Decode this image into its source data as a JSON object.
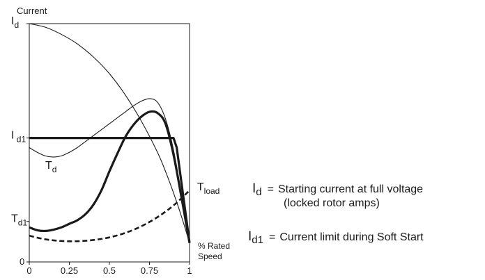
{
  "chart_data": {
    "type": "line",
    "title": "",
    "ylabel": "Current",
    "xlabel_lines": [
      "% Rated",
      "Speed"
    ],
    "x_ticks": [
      "0",
      "0.25",
      "0.5",
      "0.75",
      "1"
    ],
    "xlim": [
      0,
      1
    ],
    "ylim": [
      0,
      1
    ],
    "grid": false,
    "y_marks": [
      {
        "name": "I",
        "sub": "d",
        "y": 1.0
      },
      {
        "name": "I",
        "sub": " d1",
        "y": 0.52
      },
      {
        "name": "T",
        "sub": "d1",
        "y": 0.17
      },
      {
        "name": "0",
        "sub": "",
        "y": 0.0
      }
    ],
    "series": [
      {
        "style": "thin",
        "x": [
          0,
          0.1,
          0.2,
          0.3,
          0.4,
          0.5,
          0.6,
          0.7,
          0.8,
          0.85,
          0.9,
          0.95,
          1.0
        ],
        "y": [
          1.0,
          0.985,
          0.955,
          0.915,
          0.86,
          0.79,
          0.7,
          0.59,
          0.46,
          0.38,
          0.29,
          0.19,
          0.08
        ]
      },
      {
        "style": "thin",
        "x": [
          0,
          0.05,
          0.1,
          0.15,
          0.2,
          0.25,
          0.3,
          0.35,
          0.4,
          0.45,
          0.5,
          0.55,
          0.6,
          0.65,
          0.7,
          0.75,
          0.8,
          0.85,
          0.9,
          0.95,
          1.0
        ],
        "y": [
          0.48,
          0.46,
          0.445,
          0.44,
          0.445,
          0.46,
          0.48,
          0.505,
          0.53,
          0.555,
          0.58,
          0.605,
          0.63,
          0.655,
          0.675,
          0.685,
          0.67,
          0.6,
          0.47,
          0.28,
          0.08
        ]
      },
      {
        "style": "thick",
        "x": [
          0,
          0.3,
          0.6,
          0.9,
          0.92,
          1.0
        ],
        "y": [
          0.52,
          0.52,
          0.52,
          0.52,
          0.48,
          0.08
        ]
      },
      {
        "style": "thick",
        "x": [
          0,
          0.05,
          0.1,
          0.15,
          0.2,
          0.25,
          0.3,
          0.35,
          0.4,
          0.45,
          0.5,
          0.55,
          0.6,
          0.65,
          0.7,
          0.75,
          0.8,
          0.85,
          0.9,
          0.95,
          1.0
        ],
        "y": [
          0.145,
          0.133,
          0.13,
          0.135,
          0.145,
          0.16,
          0.175,
          0.2,
          0.24,
          0.3,
          0.38,
          0.455,
          0.525,
          0.575,
          0.61,
          0.63,
          0.625,
          0.58,
          0.45,
          0.27,
          0.08
        ]
      },
      {
        "style": "dashed",
        "x": [
          0,
          0.1,
          0.2,
          0.3,
          0.4,
          0.5,
          0.6,
          0.7,
          0.8,
          0.9,
          1.0
        ],
        "y": [
          0.11,
          0.095,
          0.088,
          0.087,
          0.092,
          0.103,
          0.122,
          0.15,
          0.188,
          0.237,
          0.3
        ]
      }
    ],
    "annotations": [
      {
        "name": "T",
        "sub": "d",
        "x": 0.1,
        "y": 0.39
      },
      {
        "name": "T",
        "sub": "load",
        "x": 1.03,
        "y": 0.3
      }
    ]
  },
  "legend": [
    {
      "symbol": "I",
      "sub": "d",
      "text_lines": [
        "Starting current at full voltage",
        "(locked rotor amps)"
      ]
    },
    {
      "symbol": "I",
      "sub": "d1",
      "text_lines": [
        "Current limit during Soft Start"
      ]
    }
  ]
}
